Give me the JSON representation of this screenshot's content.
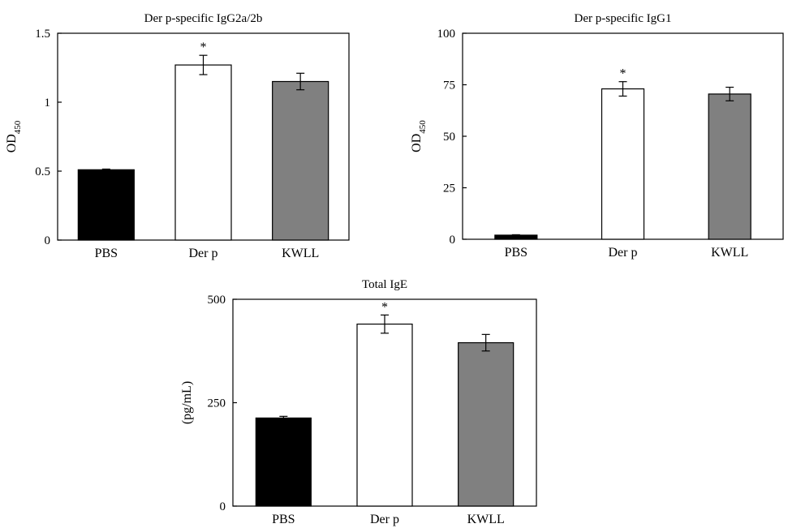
{
  "chart_data": [
    {
      "id": "igg2a",
      "type": "bar",
      "title": "Der p-specific IgG2a/2b",
      "ylabel": "OD",
      "ylabel_sub": "450",
      "ylim": [
        0,
        1.5
      ],
      "yticks": [
        0,
        0.5,
        1,
        1.5
      ],
      "ytick_labels": [
        "0",
        "0.5",
        "1",
        "1.5"
      ],
      "categories": [
        "PBS",
        "Der p",
        "KWLL"
      ],
      "values": [
        0.51,
        1.27,
        1.15
      ],
      "errors": [
        0.005,
        0.07,
        0.06
      ],
      "colors": [
        "#000000",
        "#ffffff",
        "#808080"
      ],
      "annotations": [
        "",
        "*",
        ""
      ],
      "grid": false
    },
    {
      "id": "igg1",
      "type": "bar",
      "title": "Der p-specific IgG1",
      "ylabel": "OD",
      "ylabel_sub": "450",
      "ylim": [
        0,
        100
      ],
      "yticks": [
        0,
        25,
        50,
        75,
        100
      ],
      "ytick_labels": [
        "0",
        "25",
        "50",
        "75",
        "100"
      ],
      "categories": [
        "PBS",
        "Der p",
        "KWLL"
      ],
      "values": [
        2,
        73,
        70.5
      ],
      "errors": [
        0.2,
        3.5,
        3.3
      ],
      "colors": [
        "#000000",
        "#ffffff",
        "#808080"
      ],
      "annotations": [
        "",
        "*",
        ""
      ],
      "grid": false
    },
    {
      "id": "ige",
      "type": "bar",
      "title": "Total IgE",
      "ylabel": "(pg/mL)",
      "ylabel_sub": "",
      "ylim": [
        0,
        500
      ],
      "yticks": [
        0,
        250,
        500
      ],
      "ytick_labels": [
        "0",
        "250",
        "500"
      ],
      "categories": [
        "PBS",
        "Der p",
        "KWLL"
      ],
      "values": [
        213,
        440,
        395
      ],
      "errors": [
        4,
        22,
        20
      ],
      "colors": [
        "#000000",
        "#ffffff",
        "#808080"
      ],
      "annotations": [
        "",
        "*",
        ""
      ],
      "grid": false
    }
  ]
}
